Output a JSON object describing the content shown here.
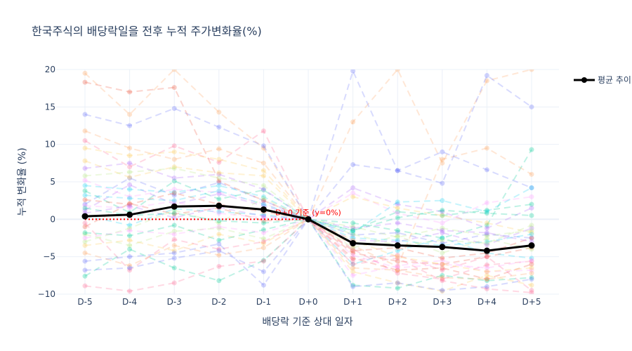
{
  "chart_data": {
    "type": "line",
    "title": "한국주식의 배당락일을 전후 누적 주가변화율(%)",
    "xlabel": "배당락 기준 상대 일자",
    "ylabel": "누적 변화율 (%)",
    "categories": [
      "D-5",
      "D-4",
      "D-3",
      "D-2",
      "D-1",
      "D+0",
      "D+1",
      "D+2",
      "D+3",
      "D+4",
      "D+5"
    ],
    "ylim": [
      -10,
      20
    ],
    "yticks": [
      -10,
      -5,
      0,
      5,
      10,
      15,
      20
    ],
    "grid": true,
    "legend": {
      "placement": "top-right",
      "entries": [
        "평균 추이"
      ]
    },
    "series": [
      {
        "name": "평균 추이",
        "color": "#000000",
        "values": [
          0.4,
          0.6,
          1.7,
          1.8,
          1.3,
          0.0,
          -3.2,
          -3.5,
          -3.7,
          -4.2,
          -3.5
        ]
      }
    ],
    "background_series": [
      {
        "color": "#636efa",
        "values": [
          2.0,
          5.5,
          3.2,
          4.9,
          2.5,
          0,
          -2.1,
          -1.8,
          -3.2,
          -2.0,
          -2.5
        ]
      },
      {
        "color": "#ef553b",
        "values": [
          -1.0,
          2.1,
          0.7,
          1.5,
          -0.2,
          0,
          -4.5,
          -5.6,
          -6.0,
          -5.0,
          -3.8
        ]
      },
      {
        "color": "#00cc96",
        "values": [
          3.8,
          0.9,
          5.1,
          2.7,
          3.9,
          0,
          -1.5,
          1.0,
          0.5,
          1.2,
          2.0
        ]
      },
      {
        "color": "#ab63fa",
        "values": [
          1.2,
          4.6,
          2.0,
          3.4,
          1.8,
          0,
          -2.8,
          -3.0,
          -1.8,
          -3.4,
          -1.2
        ]
      },
      {
        "color": "#ffa15a",
        "values": [
          19.5,
          14.0,
          20.0,
          14.3,
          9.5,
          0,
          13.0,
          20.0,
          7.5,
          18.5,
          20.0
        ]
      },
      {
        "color": "#19d3f3",
        "values": [
          0.5,
          -0.8,
          1.4,
          1.0,
          0.6,
          0,
          -6.0,
          -4.2,
          -2.5,
          -4.5,
          -5.2
        ]
      },
      {
        "color": "#ff6692",
        "values": [
          10.5,
          7.0,
          9.8,
          7.6,
          11.8,
          0,
          -4.0,
          -7.2,
          -8.0,
          -6.1,
          -5.6
        ]
      },
      {
        "color": "#b6e880",
        "values": [
          -2.0,
          -3.5,
          -1.6,
          -1.2,
          -2.6,
          0,
          -1.0,
          -2.4,
          -1.2,
          -2.2,
          -1.5
        ]
      },
      {
        "color": "#ff97ff",
        "values": [
          5.2,
          3.0,
          4.0,
          3.6,
          2.1,
          0,
          3.5,
          0.8,
          -0.5,
          2.2,
          3.0
        ]
      },
      {
        "color": "#fecb52",
        "values": [
          -3.5,
          -2.8,
          -4.2,
          -2.0,
          -3.2,
          0,
          -7.0,
          -8.5,
          -9.6,
          -7.5,
          -8.8
        ]
      },
      {
        "color": "#636efa",
        "values": [
          14.0,
          12.5,
          14.8,
          12.3,
          9.8,
          0,
          7.3,
          6.5,
          9.0,
          6.6,
          4.2
        ]
      },
      {
        "color": "#ef553b",
        "values": [
          18.3,
          17.0,
          17.6,
          5.1,
          2.5,
          0,
          -5.2,
          -6.8,
          -6.5,
          -8.0,
          -6.0
        ]
      },
      {
        "color": "#00cc96",
        "values": [
          -1.8,
          -2.2,
          -0.8,
          -2.8,
          -1.4,
          0,
          -0.5,
          -1.5,
          -2.5,
          -0.8,
          9.3
        ]
      },
      {
        "color": "#ab63fa",
        "values": [
          6.8,
          7.5,
          5.5,
          6.0,
          4.0,
          0,
          4.2,
          2.0,
          1.0,
          -1.2,
          1.5
        ]
      },
      {
        "color": "#ffa15a",
        "values": [
          11.8,
          9.5,
          8.0,
          9.4,
          7.5,
          0,
          -3.5,
          -6.3,
          8.0,
          9.5,
          6.0
        ]
      },
      {
        "color": "#19d3f3",
        "values": [
          4.5,
          4.0,
          3.6,
          4.5,
          3.0,
          0,
          -1.8,
          2.3,
          2.5,
          1.0,
          4.2
        ]
      },
      {
        "color": "#ff6692",
        "values": [
          -0.5,
          -6.8,
          -2.7,
          -4.0,
          -3.0,
          0,
          -5.5,
          -4.8,
          -6.8,
          -5.0,
          -9.5
        ]
      },
      {
        "color": "#b6e880",
        "values": [
          -3.0,
          -1.2,
          1.2,
          -0.5,
          2.8,
          0,
          -3.8,
          -2.2,
          -4.5,
          -2.6,
          -4.0
        ]
      },
      {
        "color": "#ff97ff",
        "values": [
          1.8,
          1.5,
          2.4,
          0.8,
          0.2,
          0,
          -7.5,
          -6.2,
          -5.5,
          -7.0,
          -6.8
        ]
      },
      {
        "color": "#fecb52",
        "values": [
          7.8,
          5.6,
          7.0,
          6.2,
          5.8,
          0,
          3.0,
          1.5,
          0.5,
          -0.5,
          -1.8
        ]
      },
      {
        "color": "#636efa",
        "values": [
          -5.6,
          -5.0,
          -4.5,
          -3.3,
          -8.8,
          0,
          19.8,
          6.5,
          4.8,
          19.2,
          15.0
        ]
      },
      {
        "color": "#ef553b",
        "values": [
          2.6,
          2.0,
          3.5,
          2.0,
          1.0,
          0,
          -4.2,
          -3.8,
          -5.2,
          -4.5,
          -2.5
        ]
      },
      {
        "color": "#00cc96",
        "values": [
          -7.6,
          -4.0,
          -6.5,
          -8.2,
          -5.5,
          0,
          -8.8,
          -9.2,
          -7.5,
          -8.2,
          -7.8
        ]
      },
      {
        "color": "#ab63fa",
        "values": [
          0.8,
          1.8,
          0.2,
          1.6,
          0.4,
          0,
          -1.2,
          -0.5,
          -1.5,
          -1.8,
          -3.0
        ]
      },
      {
        "color": "#ffa15a",
        "values": [
          -4.5,
          -6.2,
          -3.5,
          -4.8,
          -3.8,
          0,
          -6.5,
          -6.8,
          -7.8,
          -8.0,
          -7.2
        ]
      },
      {
        "color": "#19d3f3",
        "values": [
          3.2,
          2.8,
          2.5,
          3.8,
          2.0,
          0,
          -2.5,
          -2.8,
          -3.5,
          -3.0,
          -2.0
        ]
      },
      {
        "color": "#ff6692",
        "values": [
          -8.9,
          -9.6,
          -8.5,
          -6.3,
          -5.6,
          0,
          -6.0,
          -5.2,
          -8.2,
          -9.3,
          -9.8
        ]
      },
      {
        "color": "#b6e880",
        "values": [
          5.8,
          6.3,
          6.8,
          5.5,
          4.5,
          0,
          -2.0,
          -3.5,
          -2.8,
          -3.2,
          -0.8
        ]
      },
      {
        "color": "#ff97ff",
        "values": [
          -2.5,
          -1.5,
          -2.0,
          -1.0,
          -1.8,
          0,
          -4.8,
          -6.5,
          -6.0,
          -6.5,
          -5.5
        ]
      },
      {
        "color": "#fecb52",
        "values": [
          9.5,
          8.5,
          9.0,
          8.0,
          6.5,
          0,
          -2.8,
          -5.0,
          -6.0,
          -7.0,
          -6.5
        ]
      },
      {
        "color": "#636efa",
        "values": [
          -6.8,
          -6.5,
          -5.2,
          -4.2,
          -7.0,
          0,
          -9.0,
          -8.5,
          -9.5,
          -9.0,
          -8.0
        ]
      },
      {
        "color": "#00cc96",
        "values": [
          1.5,
          0.5,
          0.8,
          -0.2,
          -0.5,
          0,
          -1.5,
          0.2,
          1.2,
          0.8,
          0.5
        ]
      }
    ],
    "annotations": [
      {
        "text": "D+0 기준 (y=0%)",
        "x": "D+0",
        "y": 0,
        "color": "#ff0000"
      }
    ]
  }
}
